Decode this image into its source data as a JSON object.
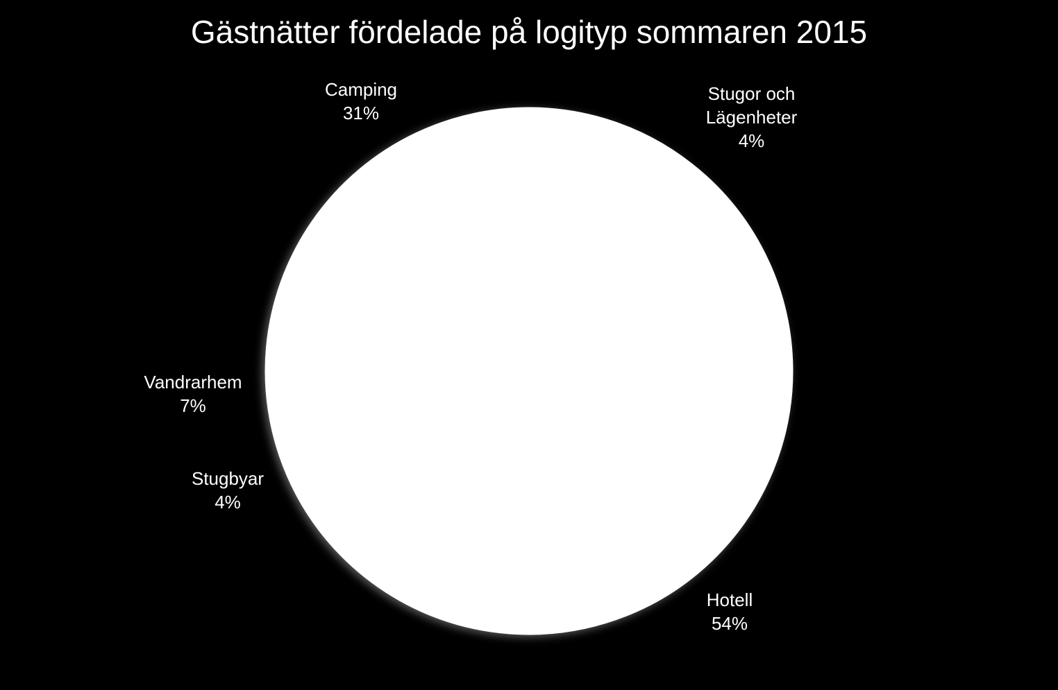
{
  "chart_data": {
    "type": "pie",
    "title": "Gästnätter fördelade på logityp sommaren 2015",
    "slices": [
      {
        "name": "Camping",
        "value": 31,
        "value_label": "31%"
      },
      {
        "name": "Stugor och Lägenheter",
        "name_lines": [
          "Stugor och",
          "Lägenheter"
        ],
        "value": 4,
        "value_label": "4%"
      },
      {
        "name": "Hotell",
        "value": 54,
        "value_label": "54%"
      },
      {
        "name": "Stugbyar",
        "value": 4,
        "value_label": "4%"
      },
      {
        "name": "Vandrarhem",
        "value": 7,
        "value_label": "7%"
      }
    ],
    "colors": {
      "background": "#000000",
      "slice_fill": "#ffffff",
      "text": "#ffffff"
    }
  }
}
